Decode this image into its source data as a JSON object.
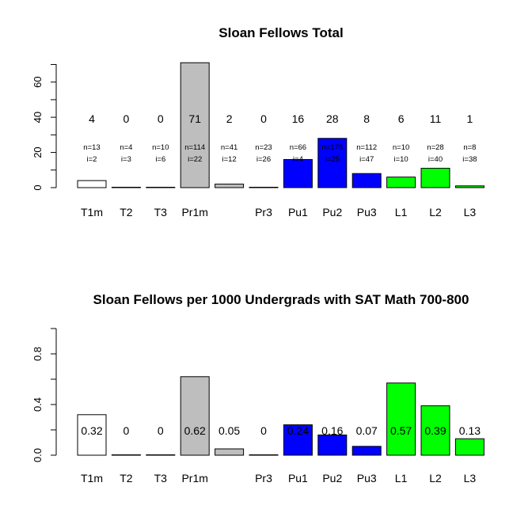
{
  "chart_data": [
    {
      "type": "bar",
      "title": "Sloan Fellows Total",
      "xlabel": "",
      "ylabel": "",
      "ylim": [
        0,
        72
      ],
      "yticks": [
        0,
        20,
        40,
        60
      ],
      "categories": [
        "T1m",
        "T2",
        "T3",
        "Pr1m",
        "",
        "Pr3",
        "Pu1",
        "Pu2",
        "Pu3",
        "L1",
        "L2",
        "L3"
      ],
      "values": [
        4,
        0,
        0,
        71,
        2,
        0,
        16,
        28,
        8,
        6,
        11,
        1
      ],
      "value_labels": [
        "4",
        "0",
        "0",
        "71",
        "2",
        "0",
        "16",
        "28",
        "8",
        "6",
        "11",
        "1"
      ],
      "n_labels": [
        "n=13",
        "n=4",
        "n=10",
        "n=114",
        "n=41",
        "n=23",
        "n=66",
        "n=178",
        "n=112",
        "n=10",
        "n=28",
        "n=8"
      ],
      "i_labels": [
        "i=2",
        "i=3",
        "i=6",
        "i=22",
        "i=12",
        "i=26",
        "i=4",
        "i=25",
        "i=47",
        "i=10",
        "i=40",
        "i=38"
      ],
      "colors": [
        "#ffffff",
        "#ffffff",
        "#ffffff",
        "#bebebe",
        "#bebebe",
        "#bebebe",
        "#0000ff",
        "#0000ff",
        "#0000ff",
        "#00ff00",
        "#00ff00",
        "#00ff00"
      ],
      "grid": false,
      "legend": "none"
    },
    {
      "type": "bar",
      "title": "Sloan Fellows per 1000 Undergrads with SAT Math 700-800",
      "xlabel": "",
      "ylabel": "",
      "ylim": [
        0,
        1.0
      ],
      "yticks": [
        0.0,
        0.4,
        0.8
      ],
      "yticks_minor": [
        0.2,
        0.6,
        1.0
      ],
      "ytick_labels": [
        "0.0",
        "0.4",
        "0.8"
      ],
      "categories": [
        "T1m",
        "T2",
        "T3",
        "Pr1m",
        "",
        "Pr3",
        "Pu1",
        "Pu2",
        "Pu3",
        "L1",
        "L2",
        "L3"
      ],
      "values": [
        0.32,
        0,
        0,
        0.62,
        0.05,
        0,
        0.24,
        0.16,
        0.07,
        0.57,
        0.39,
        0.13
      ],
      "value_labels": [
        "0.32",
        "0",
        "0",
        "0.62",
        "0.05",
        "0",
        "0.24",
        "0.16",
        "0.07",
        "0.57",
        "0.39",
        "0.13"
      ],
      "colors": [
        "#ffffff",
        "#ffffff",
        "#ffffff",
        "#bebebe",
        "#bebebe",
        "#bebebe",
        "#0000ff",
        "#0000ff",
        "#0000ff",
        "#00ff00",
        "#00ff00",
        "#00ff00"
      ],
      "grid": false,
      "legend": "none"
    }
  ]
}
